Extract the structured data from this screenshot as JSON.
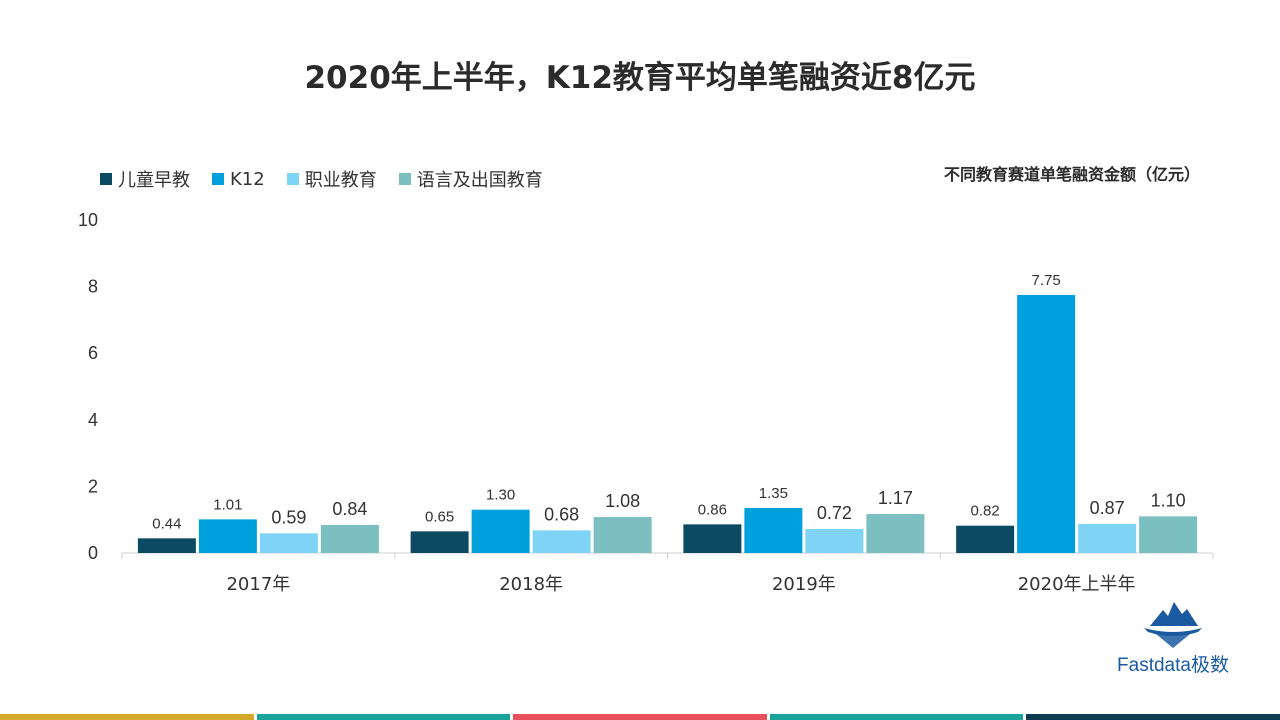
{
  "page": {
    "title": "2020年上半年，K12教育平均单笔融资近8亿元",
    "brand": "Fastdata极数",
    "footer_colors": [
      "#d4a82a",
      "#1aa39a",
      "#e8505b",
      "#1aa39a",
      "#0d3b4f"
    ]
  },
  "chart_data": {
    "type": "bar",
    "subtitle": "不同教育赛道单笔融资金额（亿元）",
    "categories": [
      "2017年",
      "2018年",
      "2019年",
      "2020年上半年"
    ],
    "series": [
      {
        "name": "儿童早教",
        "color": "#0c4a61",
        "values": [
          0.44,
          0.65,
          0.86,
          0.82
        ]
      },
      {
        "name": "K12",
        "color": "#00a0dc",
        "values": [
          1.01,
          1.3,
          1.35,
          7.75
        ]
      },
      {
        "name": "职业教育",
        "color": "#7fd4f5",
        "values": [
          0.59,
          0.68,
          0.72,
          0.87
        ]
      },
      {
        "name": "语言及出国教育",
        "color": "#7bbfc0",
        "values": [
          0.84,
          1.08,
          1.17,
          1.1
        ]
      }
    ],
    "data_labels": [
      [
        "0.44",
        "0.65",
        "0.86",
        "0.82"
      ],
      [
        "1.01",
        "1.30",
        "1.35",
        "7.75"
      ],
      [
        "0.59",
        "0.68",
        "0.72",
        "0.87"
      ],
      [
        "0.84",
        "1.08",
        "1.17",
        "1.10"
      ]
    ],
    "ylim": [
      0,
      10
    ],
    "yticks": [
      "0",
      "2",
      "4",
      "6",
      "8",
      "10"
    ],
    "legend_position": "top-left",
    "grid": false
  }
}
